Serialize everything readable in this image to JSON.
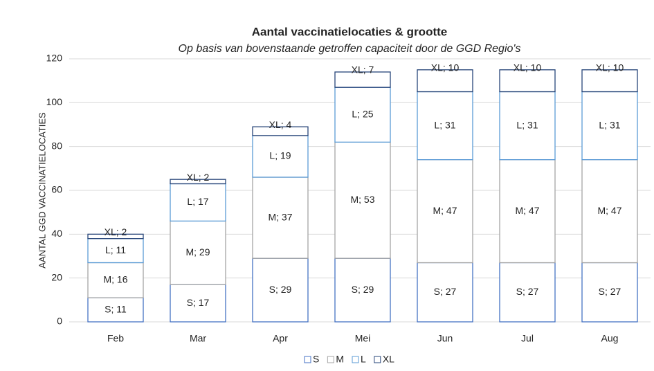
{
  "chart_data": {
    "type": "stacked_bar",
    "title": "Aantal vaccinatielocaties & grootte",
    "subtitle": "Op basis van bovenstaande getroffen capaciteit door de GGD Regio's",
    "ylabel": "AANTAL GGD VACCINATIELOCATIES",
    "categories": [
      "Feb",
      "Mar",
      "Apr",
      "Mei",
      "Jun",
      "Jul",
      "Aug"
    ],
    "series": [
      {
        "name": "S",
        "color": "#4472c4",
        "values": [
          11,
          17,
          29,
          29,
          27,
          27,
          27
        ],
        "value_labels": [
          "S; 11",
          "S; 17",
          "S; 29",
          "S; 29",
          "S; 27",
          "S; 27",
          "S; 27"
        ]
      },
      {
        "name": "M",
        "color": "#a5a5a5",
        "values": [
          16,
          29,
          37,
          53,
          47,
          47,
          47
        ],
        "value_labels": [
          "M; 16",
          "M; 29",
          "M; 37",
          "M; 53",
          "M; 47",
          "M; 47",
          "M; 47"
        ]
      },
      {
        "name": "L",
        "color": "#5b9bd5",
        "values": [
          11,
          17,
          19,
          25,
          31,
          31,
          31
        ],
        "value_labels": [
          "L; 11",
          "L; 17",
          "L; 19",
          "L; 25",
          "L; 31",
          "L; 31",
          "L; 31"
        ]
      },
      {
        "name": "XL",
        "color": "#264478",
        "values": [
          2,
          2,
          4,
          7,
          10,
          10,
          10
        ],
        "value_labels": [
          "XL; 2",
          "XL; 2",
          "XL; 4",
          "XL; 7",
          "XL; 10",
          "XL; 10",
          "XL; 10"
        ]
      }
    ],
    "ylim": [
      0,
      120
    ],
    "yticks": [
      0,
      20,
      40,
      60,
      80,
      100,
      120
    ],
    "grid": true,
    "legend": "bottom"
  }
}
